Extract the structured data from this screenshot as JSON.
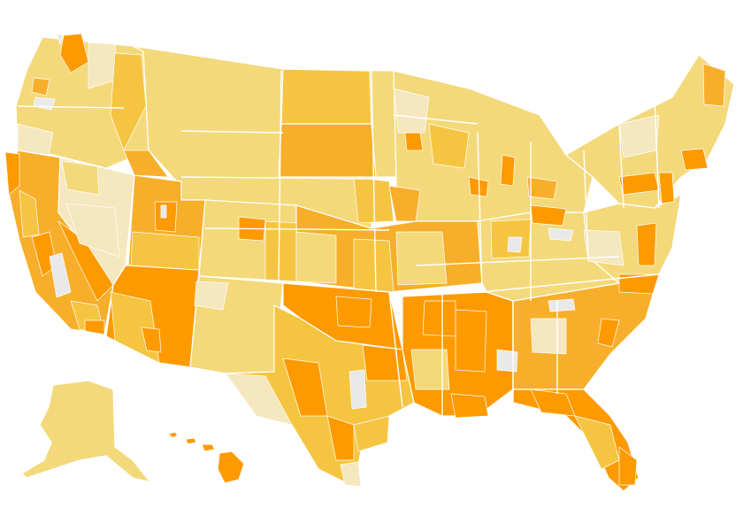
{
  "palette": {
    "very_light": "#f5e7be",
    "light": "#f3d97a",
    "medium": "#f5c542",
    "dark": "#f7ae2a",
    "darkest": "#fd9a00",
    "no_data": "#e9e9e9"
  },
  "regions": [
    {
      "name": "pacific-northwest",
      "level": "light"
    },
    {
      "name": "northern-plains",
      "level": "light"
    },
    {
      "name": "north-dakota",
      "level": "medium"
    },
    {
      "name": "south-dakota",
      "level": "dark"
    },
    {
      "name": "great-lakes",
      "level": "light"
    },
    {
      "name": "northeast",
      "level": "light"
    },
    {
      "name": "california",
      "level": "dark"
    },
    {
      "name": "nevada",
      "level": "very_light"
    },
    {
      "name": "utah",
      "level": "dark"
    },
    {
      "name": "arizona",
      "level": "darkest"
    },
    {
      "name": "colorado",
      "level": "light"
    },
    {
      "name": "new-mexico",
      "level": "light"
    },
    {
      "name": "central-plains",
      "level": "dark"
    },
    {
      "name": "oklahoma",
      "level": "darkest"
    },
    {
      "name": "texas",
      "level": "medium"
    },
    {
      "name": "deep-south",
      "level": "darkest"
    },
    {
      "name": "southeast",
      "level": "dark"
    },
    {
      "name": "florida",
      "level": "darkest"
    },
    {
      "name": "mid-atlantic",
      "level": "light"
    },
    {
      "name": "appalachia",
      "level": "light"
    },
    {
      "name": "alaska",
      "level": "light"
    },
    {
      "name": "hawaii",
      "level": "darkest"
    }
  ]
}
